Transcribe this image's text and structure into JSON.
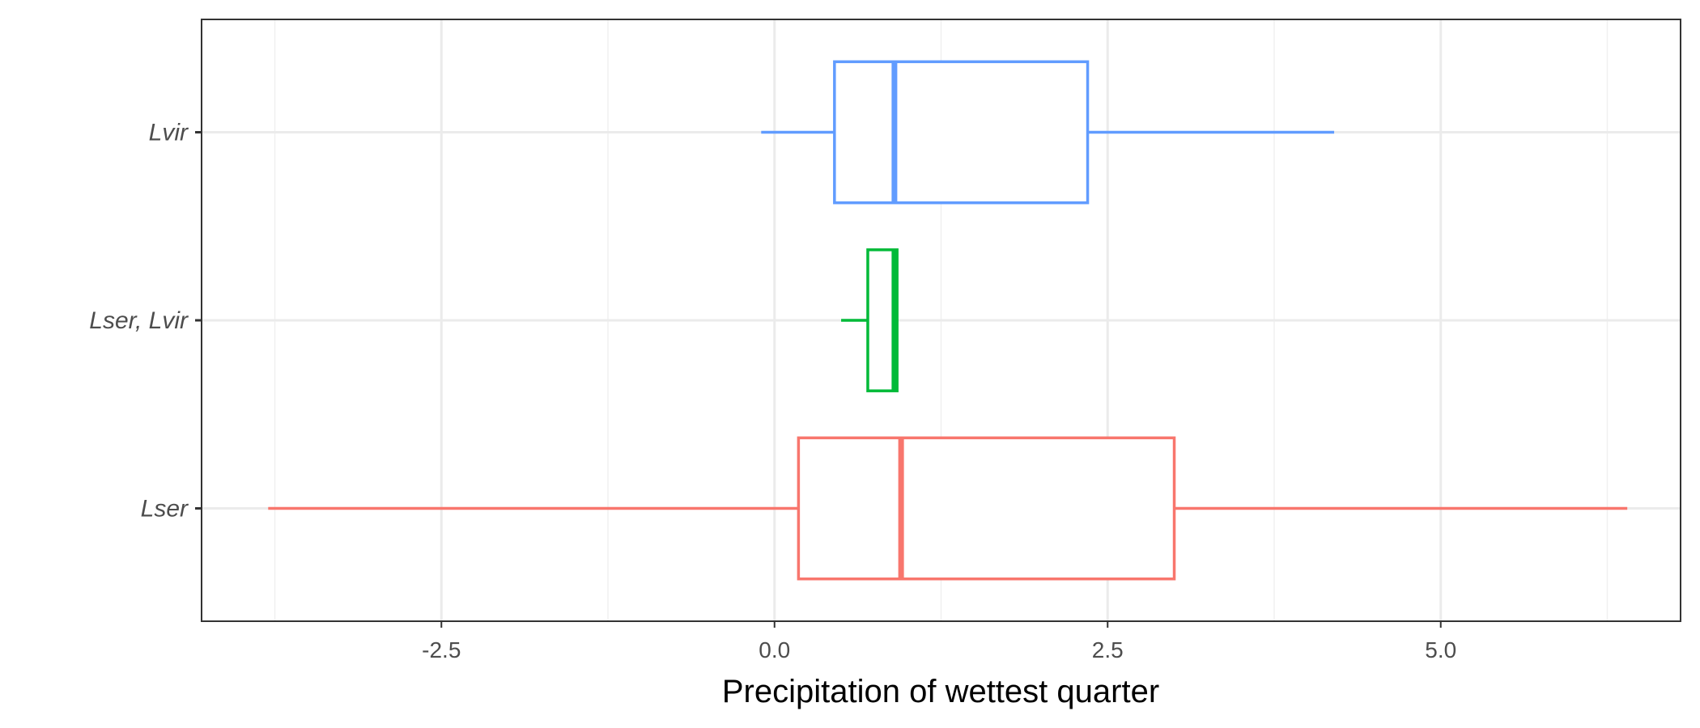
{
  "chart_data": {
    "type": "boxplot",
    "orientation": "horizontal",
    "title": "",
    "xlabel": "Precipitation of wettest quarter",
    "ylabel": "",
    "xlim": [
      -4.3,
      6.8
    ],
    "x_ticks": [
      -2.5,
      0.0,
      2.5,
      5.0
    ],
    "x_tick_labels": [
      "-2.5",
      "0.0",
      "2.5",
      "5.0"
    ],
    "categories": [
      "Lvir",
      "Lser, Lvir",
      "Lser"
    ],
    "grid": true,
    "legend": "none",
    "series": [
      {
        "category": "Lvir",
        "color": "#619CFF",
        "whisker_low": -0.1,
        "q1": 0.45,
        "median": 0.9,
        "q3": 2.35,
        "whisker_high": 4.2
      },
      {
        "category": "Lser, Lvir",
        "color": "#00BA38",
        "whisker_low": 0.5,
        "q1": 0.7,
        "median": 0.9,
        "q3": 0.92,
        "whisker_high": 0.92
      },
      {
        "category": "Lser",
        "color": "#F8766D",
        "whisker_low": -3.8,
        "q1": 0.18,
        "median": 0.95,
        "q3": 3.0,
        "whisker_high": 6.4
      }
    ]
  }
}
